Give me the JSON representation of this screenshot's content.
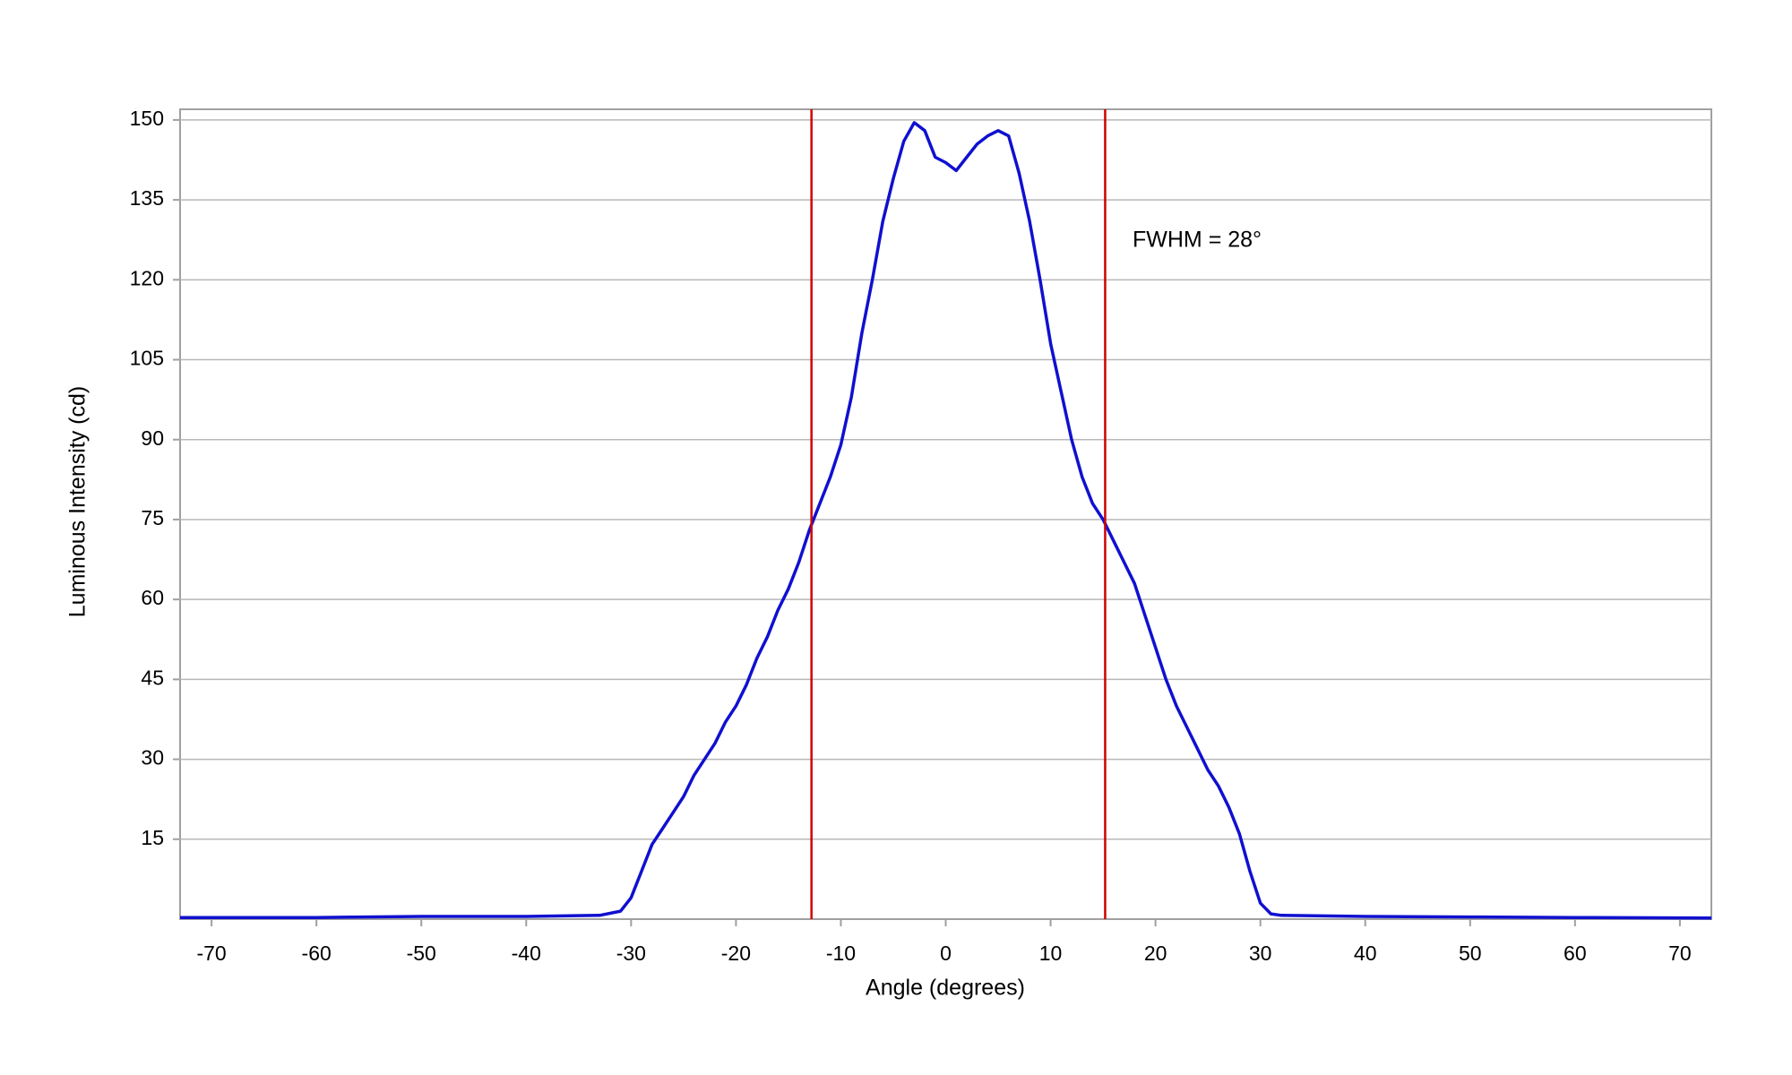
{
  "chart_data": {
    "type": "line",
    "xlabel": "Angle (degrees)",
    "ylabel": "Luminous Intensity (cd)",
    "annotation": "FWHM = 28°",
    "x": [
      -73,
      -60,
      -50,
      -40,
      -33,
      -31,
      -30,
      -29,
      -28,
      -27,
      -26,
      -25,
      -24,
      -23,
      -22,
      -21,
      -20,
      -19,
      -18,
      -17,
      -16,
      -15,
      -14,
      -13,
      -12,
      -11,
      -10,
      -9,
      -8,
      -7,
      -6,
      -5,
      -4,
      -3,
      -2,
      -1,
      0,
      1,
      2,
      3,
      4,
      5,
      6,
      7,
      8,
      9,
      10,
      11,
      12,
      13,
      14,
      15,
      16,
      17,
      18,
      19,
      20,
      21,
      22,
      23,
      24,
      25,
      26,
      27,
      28,
      29,
      30,
      31,
      32,
      40,
      50,
      60,
      73
    ],
    "series": [
      {
        "color": "#1010d0",
        "values": [
          0.3,
          0.3,
          0.5,
          0.5,
          0.7,
          1.5,
          4,
          9,
          14,
          17,
          20,
          23,
          27,
          30,
          33,
          37,
          40,
          44,
          49,
          53,
          58,
          62,
          67,
          73,
          78,
          83,
          89,
          98,
          110,
          120,
          131,
          139,
          146,
          149.5,
          148,
          143,
          142,
          140.5,
          143,
          145.5,
          147,
          148,
          147,
          140,
          131,
          120,
          108,
          99,
          90,
          83,
          78,
          75,
          71,
          67,
          63,
          57,
          51,
          45,
          40,
          36,
          32,
          28,
          25,
          21,
          16,
          9,
          3,
          1,
          0.7,
          0.5,
          0.4,
          0.3,
          0.2
        ]
      }
    ],
    "vlines": [
      {
        "x": -12.8,
        "color": "#d00000"
      },
      {
        "x": 15.2,
        "color": "#d00000"
      }
    ],
    "xlim": [
      -73,
      73
    ],
    "ylim": [
      0,
      152
    ],
    "xticks": [
      -70,
      -60,
      -50,
      -40,
      -30,
      -20,
      -10,
      0,
      10,
      20,
      30,
      40,
      50,
      60,
      70
    ],
    "yticks": [
      15,
      30,
      45,
      60,
      75,
      90,
      105,
      120,
      135,
      150
    ],
    "grid": true
  }
}
